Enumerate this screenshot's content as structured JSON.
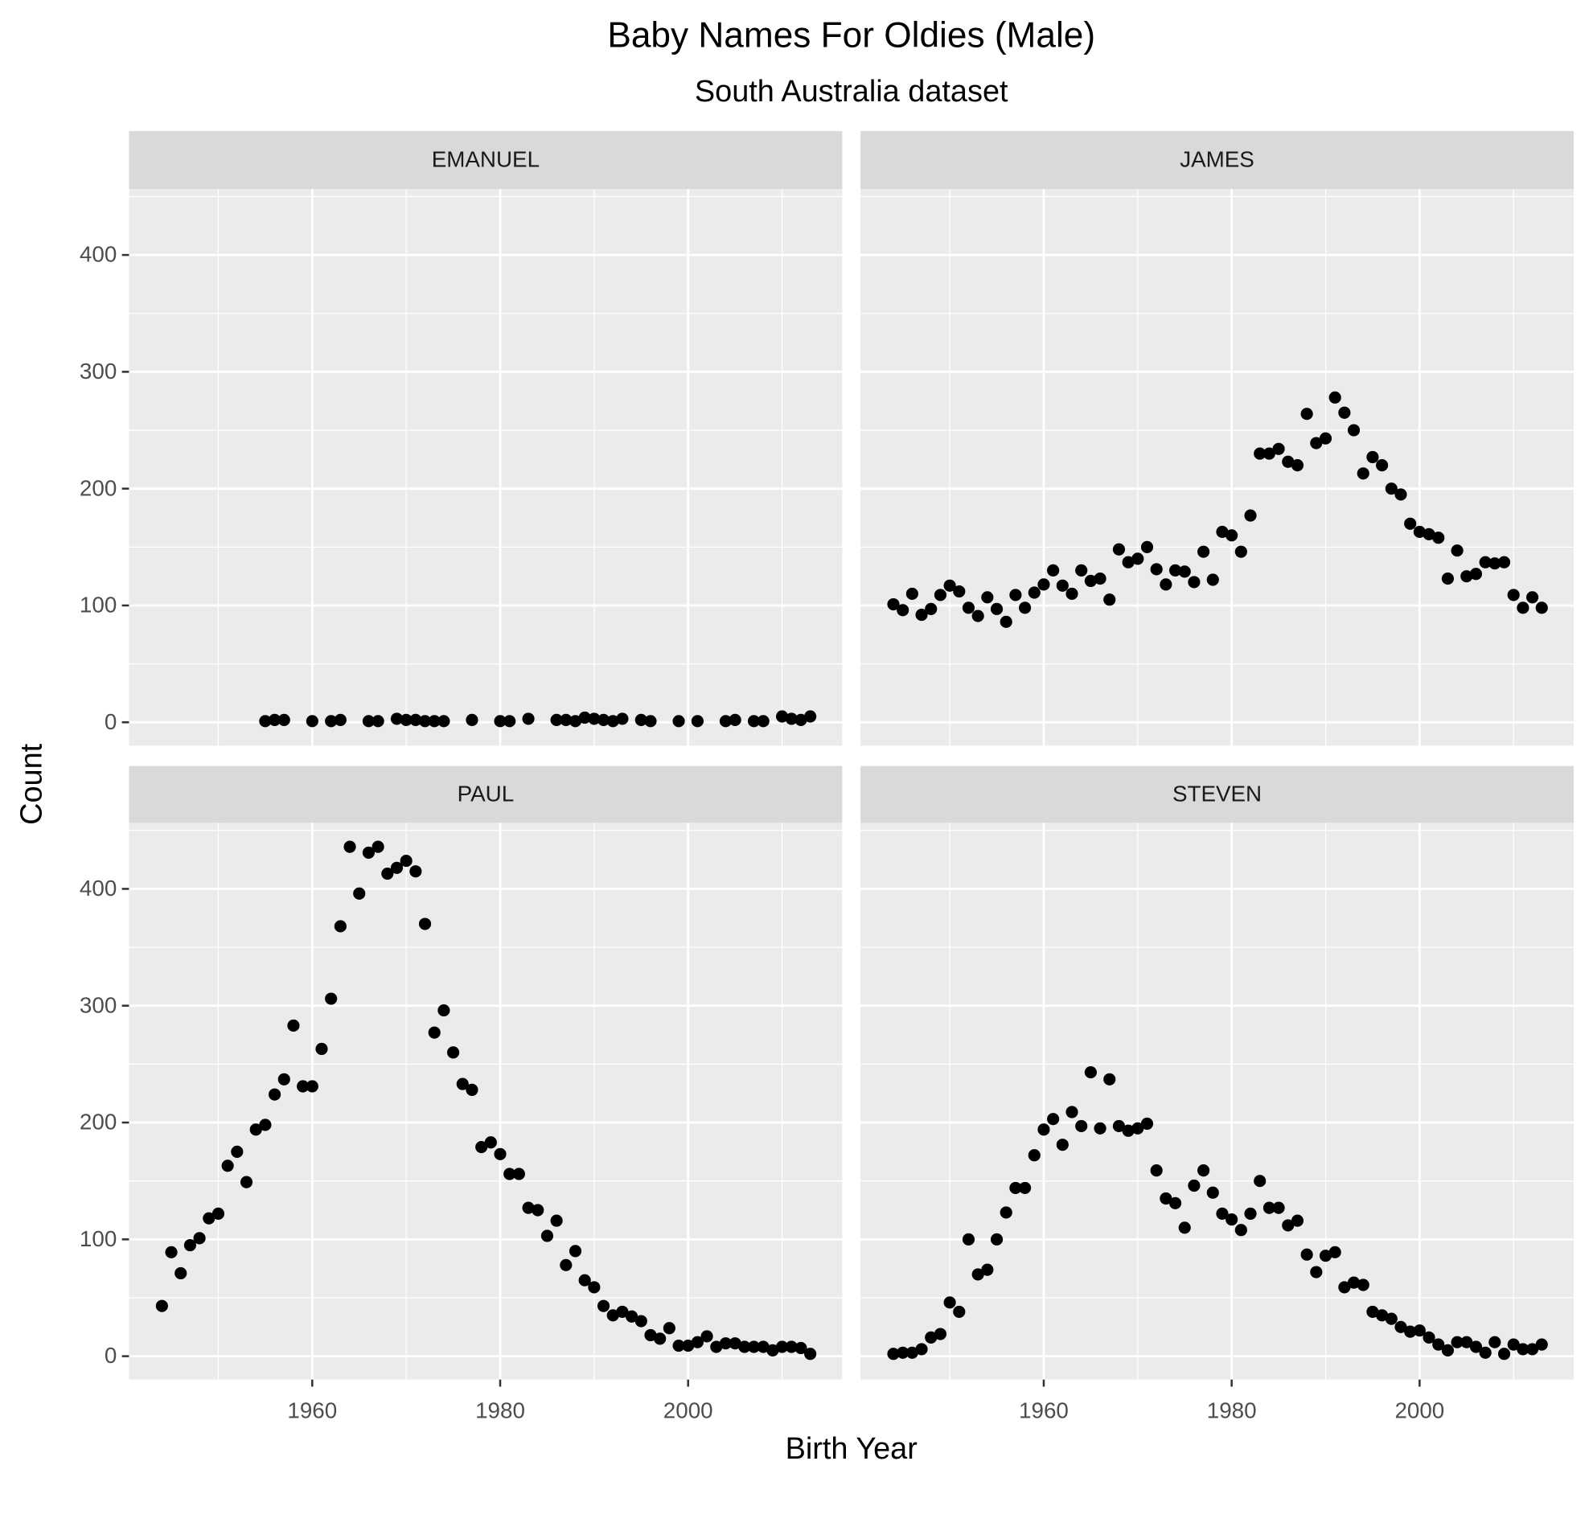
{
  "chart_data": {
    "type": "scatter",
    "title": "Baby Names For Oldies (Male)",
    "subtitle": "South Australia dataset",
    "x_label": "Birth Year",
    "y_label": "Count",
    "xlim": [
      1940.5,
      2016.4
    ],
    "ylim": [
      -20,
      456.5
    ],
    "xticks": [
      1960,
      1980,
      2000
    ],
    "yticks": [
      0,
      100,
      200,
      300,
      400
    ],
    "x_minor_breaks": [
      1950,
      1970,
      1990,
      2010
    ],
    "y_minor_breaks": [
      50,
      150,
      250,
      350,
      450
    ],
    "grid": true,
    "color": "#000000",
    "panels": [
      {
        "name": "EMANUEL",
        "x": [
          1955,
          1956,
          1957,
          1960,
          1962,
          1963,
          1966,
          1967,
          1969,
          1970,
          1971,
          1972,
          1973,
          1974,
          1977,
          1980,
          1981,
          1983,
          1986,
          1987,
          1988,
          1989,
          1990,
          1991,
          1992,
          1993,
          1995,
          1996,
          1999,
          2001,
          2004,
          2005,
          2007,
          2008,
          2010,
          2011,
          2012,
          2013
        ],
        "values": [
          1,
          2,
          2,
          1,
          1,
          2,
          1,
          1,
          3,
          2,
          2,
          1,
          1,
          1,
          2,
          1,
          1,
          3,
          2,
          2,
          1,
          4,
          3,
          2,
          1,
          3,
          2,
          1,
          1,
          1,
          1,
          2,
          1,
          1,
          5,
          3,
          2,
          5
        ]
      },
      {
        "name": "JAMES",
        "x": [
          1944,
          1945,
          1946,
          1947,
          1948,
          1949,
          1950,
          1951,
          1952,
          1953,
          1954,
          1955,
          1956,
          1957,
          1958,
          1959,
          1960,
          1961,
          1962,
          1963,
          1964,
          1965,
          1966,
          1967,
          1968,
          1969,
          1970,
          1971,
          1972,
          1973,
          1974,
          1975,
          1976,
          1977,
          1978,
          1979,
          1980,
          1981,
          1982,
          1983,
          1984,
          1985,
          1986,
          1987,
          1988,
          1989,
          1990,
          1991,
          1992,
          1993,
          1994,
          1995,
          1996,
          1997,
          1998,
          1999,
          2000,
          2001,
          2002,
          2003,
          2004,
          2005,
          2006,
          2007,
          2008,
          2009,
          2010,
          2011,
          2012,
          2013
        ],
        "values": [
          101,
          96,
          110,
          92,
          97,
          109,
          117,
          112,
          98,
          91,
          107,
          97,
          86,
          109,
          98,
          111,
          118,
          130,
          117,
          110,
          130,
          121,
          123,
          105,
          148,
          137,
          140,
          150,
          131,
          118,
          130,
          129,
          120,
          146,
          122,
          163,
          160,
          146,
          177,
          230,
          230,
          234,
          223,
          220,
          264,
          239,
          243,
          278,
          265,
          250,
          213,
          227,
          220,
          200,
          195,
          170,
          163,
          161,
          158,
          123,
          147,
          125,
          127,
          137,
          136,
          137,
          109,
          98,
          107,
          98
        ]
      },
      {
        "name": "PAUL",
        "x": [
          1944,
          1945,
          1946,
          1947,
          1948,
          1949,
          1950,
          1951,
          1952,
          1953,
          1954,
          1955,
          1956,
          1957,
          1958,
          1959,
          1960,
          1961,
          1962,
          1963,
          1964,
          1965,
          1966,
          1967,
          1968,
          1969,
          1970,
          1971,
          1972,
          1973,
          1974,
          1975,
          1976,
          1977,
          1978,
          1979,
          1980,
          1981,
          1982,
          1983,
          1984,
          1985,
          1986,
          1987,
          1988,
          1989,
          1990,
          1991,
          1992,
          1993,
          1994,
          1995,
          1996,
          1997,
          1998,
          1999,
          2000,
          2001,
          2002,
          2003,
          2004,
          2005,
          2006,
          2007,
          2008,
          2009,
          2010,
          2011,
          2012,
          2013
        ],
        "values": [
          43,
          89,
          71,
          95,
          101,
          118,
          122,
          163,
          175,
          149,
          194,
          198,
          224,
          237,
          283,
          231,
          231,
          263,
          306,
          368,
          436,
          396,
          431,
          436,
          413,
          418,
          424,
          415,
          370,
          277,
          296,
          260,
          233,
          228,
          179,
          183,
          173,
          156,
          156,
          127,
          125,
          103,
          116,
          78,
          90,
          65,
          59,
          43,
          35,
          38,
          34,
          30,
          18,
          15,
          24,
          9,
          9,
          12,
          17,
          8,
          11,
          11,
          8,
          8,
          8,
          5,
          8,
          8,
          7,
          2
        ]
      },
      {
        "name": "STEVEN",
        "x": [
          1944,
          1945,
          1946,
          1947,
          1948,
          1949,
          1950,
          1951,
          1952,
          1953,
          1954,
          1955,
          1956,
          1957,
          1958,
          1959,
          1960,
          1961,
          1962,
          1963,
          1964,
          1965,
          1966,
          1967,
          1968,
          1969,
          1970,
          1971,
          1972,
          1973,
          1974,
          1975,
          1976,
          1977,
          1978,
          1979,
          1980,
          1981,
          1982,
          1983,
          1984,
          1985,
          1986,
          1987,
          1988,
          1989,
          1990,
          1991,
          1992,
          1993,
          1994,
          1995,
          1996,
          1997,
          1998,
          1999,
          2000,
          2001,
          2002,
          2003,
          2004,
          2005,
          2006,
          2007,
          2008,
          2009,
          2010,
          2011,
          2012,
          2013
        ],
        "values": [
          2,
          3,
          3,
          6,
          16,
          19,
          46,
          38,
          100,
          70,
          74,
          100,
          123,
          144,
          144,
          172,
          194,
          203,
          181,
          209,
          197,
          243,
          195,
          237,
          197,
          193,
          195,
          199,
          159,
          135,
          131,
          110,
          146,
          159,
          140,
          122,
          117,
          108,
          122,
          150,
          127,
          127,
          112,
          116,
          87,
          72,
          86,
          89,
          59,
          63,
          61,
          38,
          35,
          32,
          25,
          21,
          22,
          16,
          10,
          5,
          12,
          12,
          8,
          3,
          12,
          2,
          10,
          6,
          6,
          10
        ]
      }
    ]
  }
}
